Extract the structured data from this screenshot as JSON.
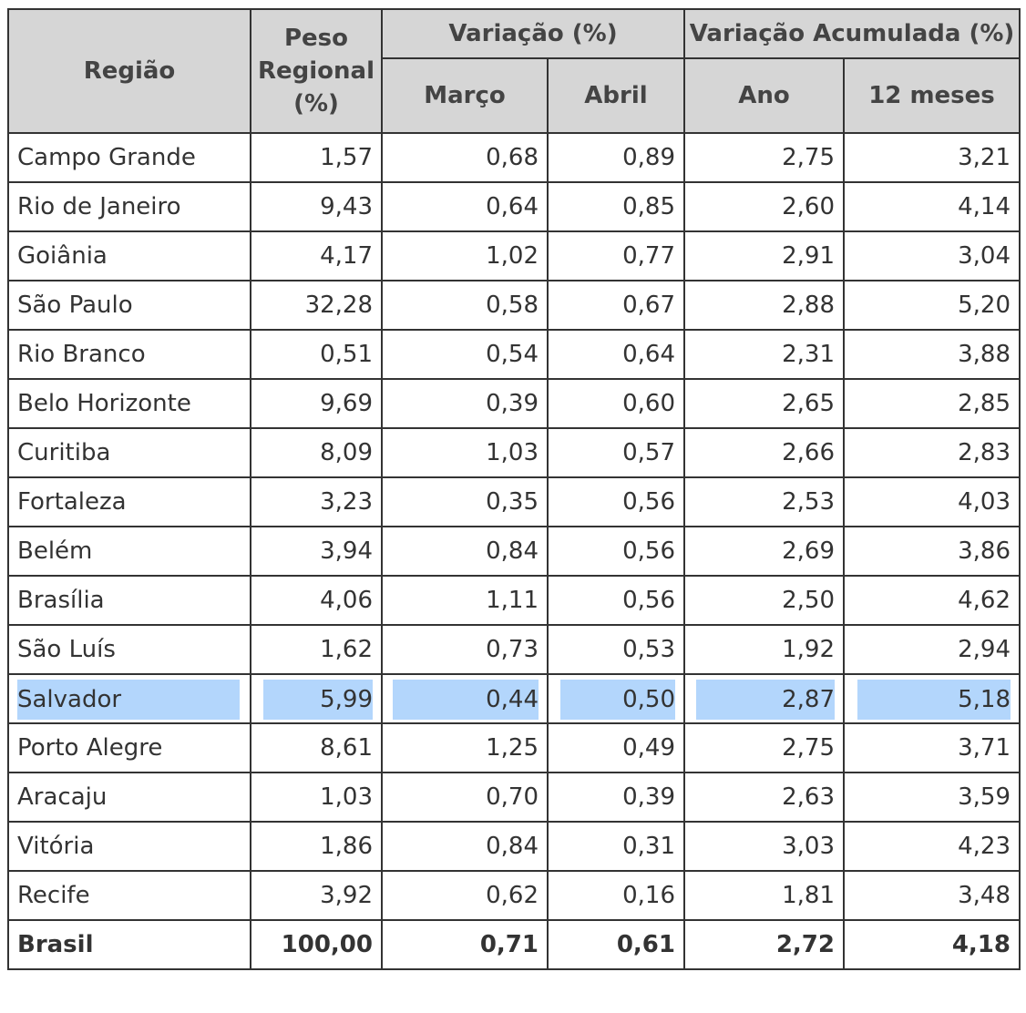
{
  "headers": {
    "regiao": "Região",
    "peso": [
      "Peso",
      "Regional",
      "(%)"
    ],
    "variacao": "Variação (%)",
    "variacao_acumulada": "Variação Acumulada (%)",
    "marco": "Março",
    "abril": "Abril",
    "ano": "Ano",
    "doze_meses": "12 meses"
  },
  "rows": [
    {
      "regiao": "Campo Grande",
      "peso": "1,57",
      "marco": "0,68",
      "abril": "0,89",
      "ano": "2,75",
      "doze_meses": "3,21"
    },
    {
      "regiao": "Rio de Janeiro",
      "peso": "9,43",
      "marco": "0,64",
      "abril": "0,85",
      "ano": "2,60",
      "doze_meses": "4,14"
    },
    {
      "regiao": "Goiânia",
      "peso": "4,17",
      "marco": "1,02",
      "abril": "0,77",
      "ano": "2,91",
      "doze_meses": "3,04"
    },
    {
      "regiao": "São Paulo",
      "peso": "32,28",
      "marco": "0,58",
      "abril": "0,67",
      "ano": "2,88",
      "doze_meses": "5,20"
    },
    {
      "regiao": "Rio Branco",
      "peso": "0,51",
      "marco": "0,54",
      "abril": "0,64",
      "ano": "2,31",
      "doze_meses": "3,88"
    },
    {
      "regiao": "Belo Horizonte",
      "peso": "9,69",
      "marco": "0,39",
      "abril": "0,60",
      "ano": "2,65",
      "doze_meses": "2,85"
    },
    {
      "regiao": "Curitiba",
      "peso": "8,09",
      "marco": "1,03",
      "abril": "0,57",
      "ano": "2,66",
      "doze_meses": "2,83"
    },
    {
      "regiao": "Fortaleza",
      "peso": "3,23",
      "marco": "0,35",
      "abril": "0,56",
      "ano": "2,53",
      "doze_meses": "4,03"
    },
    {
      "regiao": "Belém",
      "peso": "3,94",
      "marco": "0,84",
      "abril": "0,56",
      "ano": "2,69",
      "doze_meses": "3,86"
    },
    {
      "regiao": "Brasília",
      "peso": "4,06",
      "marco": "1,11",
      "abril": "0,56",
      "ano": "2,50",
      "doze_meses": "4,62"
    },
    {
      "regiao": "São Luís",
      "peso": "1,62",
      "marco": "0,73",
      "abril": "0,53",
      "ano": "1,92",
      "doze_meses": "2,94"
    },
    {
      "regiao": "Salvador",
      "peso": "5,99",
      "marco": "0,44",
      "abril": "0,50",
      "ano": "2,87",
      "doze_meses": "5,18"
    },
    {
      "regiao": "Porto Alegre",
      "peso": "8,61",
      "marco": "1,25",
      "abril": "0,49",
      "ano": "2,75",
      "doze_meses": "3,71"
    },
    {
      "regiao": "Aracaju",
      "peso": "1,03",
      "marco": "0,70",
      "abril": "0,39",
      "ano": "2,63",
      "doze_meses": "3,59"
    },
    {
      "regiao": "Vitória",
      "peso": "1,86",
      "marco": "0,84",
      "abril": "0,31",
      "ano": "3,03",
      "doze_meses": "4,23"
    },
    {
      "regiao": "Recife",
      "peso": "3,92",
      "marco": "0,62",
      "abril": "0,16",
      "ano": "1,81",
      "doze_meses": "3,48"
    }
  ],
  "total": {
    "regiao": "Brasil",
    "peso": "100,00",
    "marco": "0,71",
    "abril": "0,61",
    "ano": "2,72",
    "doze_meses": "4,18"
  },
  "highlighted_row": "Salvador",
  "colors": {
    "header_bg": "#d6d6d6",
    "border": "#333333",
    "selection": "#b3d6fc",
    "text": "#333333"
  }
}
